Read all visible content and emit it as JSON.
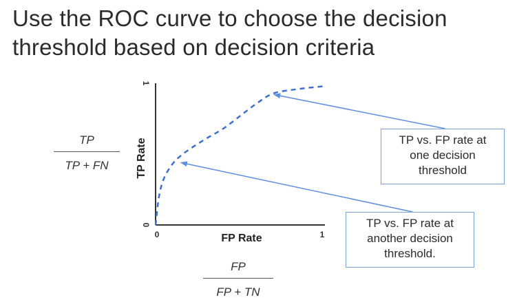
{
  "slide": {
    "title": "Use the ROC curve to choose the decision threshold based on decision criteria"
  },
  "formulas": {
    "tpr": {
      "numerator": "TP",
      "denominator": "TP + FN"
    },
    "fpr": {
      "numerator": "FP",
      "denominator": "FP + TN"
    }
  },
  "callouts": {
    "one": {
      "lines": [
        "TP vs. FP rate at",
        "one decision",
        "threshold"
      ],
      "point": [
        0.7,
        0.92
      ]
    },
    "two": {
      "lines": [
        "TP vs. FP rate at",
        "another decision",
        "threshold."
      ],
      "point": [
        0.15,
        0.44
      ]
    }
  },
  "colors": {
    "curve": "#3a6fd8",
    "arrow": "#5b8ee6",
    "callout_border": "#7aa3e0",
    "axis": "#333333"
  },
  "chart_data": {
    "type": "line",
    "title": "",
    "xlabel": "FP Rate",
    "ylabel": "TP Rate",
    "xlim": [
      0,
      1
    ],
    "ylim": [
      0,
      1
    ],
    "x_ticks": [
      "0",
      "1"
    ],
    "y_ticks": [
      "0",
      "1"
    ],
    "grid": false,
    "line_style": "dashed",
    "series": [
      {
        "x": [
          0.0,
          0.02,
          0.05,
          0.1,
          0.15,
          0.22,
          0.3,
          0.4,
          0.5,
          0.6,
          0.7,
          0.85,
          1.0
        ],
        "y": [
          0.0,
          0.2,
          0.33,
          0.43,
          0.49,
          0.55,
          0.61,
          0.68,
          0.77,
          0.86,
          0.93,
          0.96,
          0.98
        ]
      }
    ]
  }
}
